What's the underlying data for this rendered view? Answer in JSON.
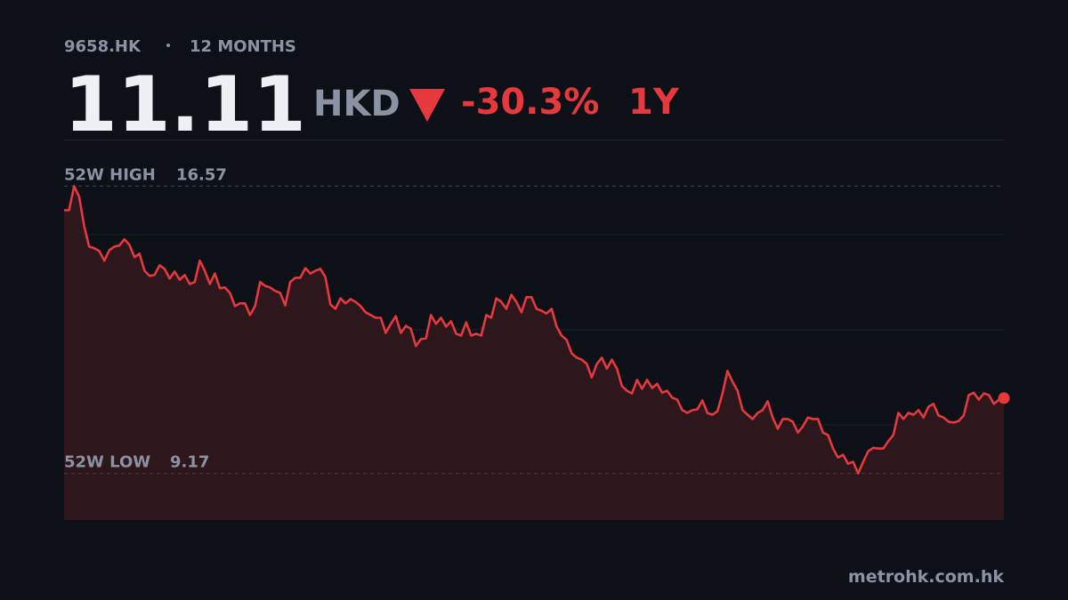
{
  "chart_data": {
    "type": "line",
    "ticker": "9658.HK",
    "period": "12 MONTHS",
    "price": 11.11,
    "currency": "HKD",
    "change": "-30.3%",
    "range": "1Y",
    "high_label": "52W HIGH",
    "high": 16.57,
    "low_label": "52W LOW",
    "low": 9.17,
    "source": "metrohk.com.hk",
    "color": "#e5393d",
    "ylim": [
      7.97,
      17.77
    ],
    "values": [
      15.95,
      15.95,
      16.57,
      16.3,
      15.54,
      15.01,
      14.97,
      14.9,
      14.65,
      14.92,
      15.01,
      15.04,
      15.2,
      15.06,
      14.74,
      14.83,
      14.39,
      14.26,
      14.28,
      14.53,
      14.44,
      14.19,
      14.37,
      14.16,
      14.28,
      14.05,
      14.1,
      14.65,
      14.39,
      14.05,
      14.32,
      13.94,
      13.96,
      13.82,
      13.48,
      13.55,
      13.55,
      13.25,
      13.48,
      14.1,
      14.0,
      13.96,
      13.87,
      13.82,
      13.5,
      14.1,
      14.21,
      14.21,
      14.46,
      14.32,
      14.39,
      14.44,
      14.23,
      13.52,
      13.41,
      13.68,
      13.55,
      13.66,
      13.59,
      13.48,
      13.32,
      13.25,
      13.18,
      13.18,
      12.79,
      13.02,
      13.22,
      12.79,
      12.97,
      12.9,
      12.45,
      12.63,
      12.65,
      13.25,
      13.02,
      13.18,
      12.95,
      13.09,
      12.77,
      12.72,
      13.06,
      12.72,
      12.77,
      12.72,
      13.25,
      13.18,
      13.68,
      13.59,
      13.41,
      13.77,
      13.59,
      13.32,
      13.71,
      13.71,
      13.41,
      13.36,
      13.29,
      13.41,
      12.95,
      12.72,
      12.61,
      12.26,
      12.15,
      12.1,
      11.99,
      11.64,
      11.99,
      12.15,
      11.87,
      12.1,
      11.87,
      11.42,
      11.3,
      11.23,
      11.58,
      11.35,
      11.58,
      11.37,
      11.48,
      11.25,
      11.3,
      11.12,
      11.07,
      10.8,
      10.73,
      10.8,
      10.82,
      11.05,
      10.73,
      10.68,
      10.77,
      11.23,
      11.81,
      11.53,
      11.3,
      10.8,
      10.68,
      10.57,
      10.73,
      10.8,
      11.03,
      10.61,
      10.32,
      10.57,
      10.57,
      10.5,
      10.22,
      10.38,
      10.61,
      10.57,
      10.57,
      10.22,
      10.16,
      9.81,
      9.58,
      9.65,
      9.42,
      9.47,
      9.17,
      9.47,
      9.74,
      9.83,
      9.81,
      9.81,
      10.0,
      10.16,
      10.73,
      10.57,
      10.73,
      10.68,
      10.8,
      10.61,
      10.89,
      10.96,
      10.66,
      10.61,
      10.5,
      10.48,
      10.52,
      10.66,
      11.19,
      11.25,
      11.07,
      11.23,
      11.19,
      10.96,
      11.07,
      11.11
    ]
  }
}
